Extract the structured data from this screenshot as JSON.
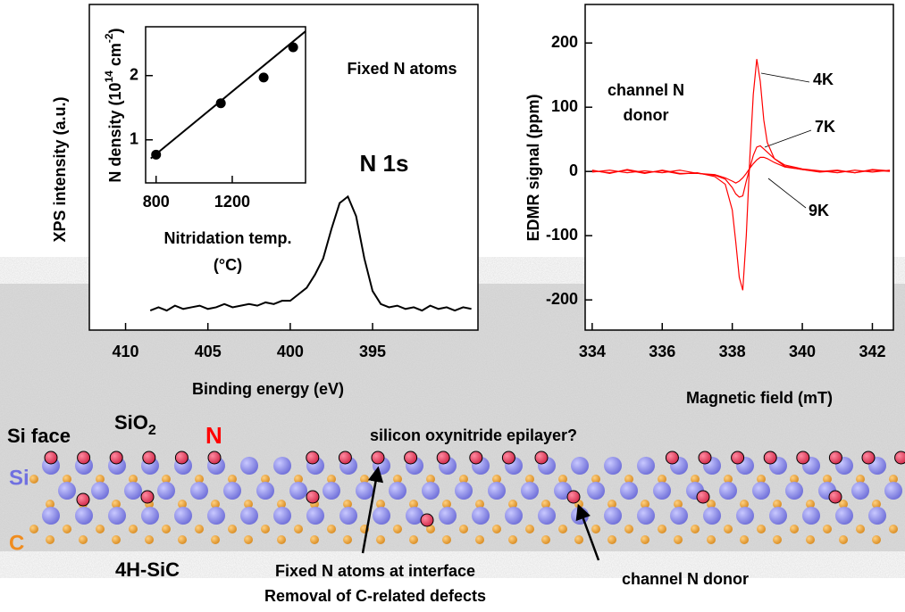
{
  "chart_data": [
    {
      "type": "line",
      "ylabel": "XPS intensity (a.u.)",
      "xlabel": "Binding energy (eV)",
      "annotations": [
        "Fixed N atoms",
        "N 1s"
      ],
      "xlim": [
        412.2,
        388.6
      ],
      "xticks": [
        410,
        405,
        400,
        395
      ],
      "ylim": [
        0,
        1
      ],
      "x": [
        408.5,
        408,
        407.5,
        407,
        406.5,
        406,
        405.5,
        405,
        404.5,
        404,
        403.5,
        403,
        402.5,
        402,
        401.5,
        401,
        400.5,
        400,
        399.5,
        399,
        398.5,
        398,
        397.5,
        397,
        396.5,
        396,
        395.5,
        395,
        394.5,
        394,
        393.5,
        393,
        392.5,
        392,
        391.5,
        391,
        390.5,
        390,
        389.5,
        389
      ],
      "series": [
        {
          "color": "#000000",
          "values": [
            0.06,
            0.07,
            0.06,
            0.075,
            0.065,
            0.07,
            0.075,
            0.065,
            0.07,
            0.08,
            0.07,
            0.075,
            0.08,
            0.075,
            0.085,
            0.08,
            0.09,
            0.09,
            0.11,
            0.13,
            0.17,
            0.22,
            0.31,
            0.39,
            0.41,
            0.35,
            0.22,
            0.12,
            0.08,
            0.07,
            0.075,
            0.065,
            0.07,
            0.06,
            0.075,
            0.065,
            0.07,
            0.06,
            0.07,
            0.065
          ]
        }
      ]
    },
    {
      "type": "scatter",
      "ylabel_parts": [
        "N density (10",
        "14",
        " cm",
        "-2",
        ")"
      ],
      "xlabel": [
        "Nitridation temp.",
        "(°C)"
      ],
      "xlim": [
        745,
        1585
      ],
      "xticks": [
        800,
        1200
      ],
      "ylim": [
        0.33,
        2.76
      ],
      "yticks": [
        1,
        2
      ],
      "x": [
        800,
        1140,
        1365,
        1520
      ],
      "values": [
        0.77,
        1.57,
        1.97,
        2.44
      ],
      "color": "#000000",
      "fit_line": {
        "x": [
          772,
          1585
        ],
        "values": [
          0.71,
          2.69
        ]
      }
    },
    {
      "type": "line",
      "ylabel": "EDMR signal (ppm)",
      "xlabel": "Magnetic field (mT)",
      "annotations": [
        "channel N",
        "donor"
      ],
      "xlim": [
        333.8,
        342.6
      ],
      "xticks": [
        334,
        336,
        338,
        340,
        342
      ],
      "ylim": [
        -247,
        260
      ],
      "yticks": [
        200,
        100,
        0,
        -100,
        -200
      ],
      "x": [
        334,
        334.5,
        335,
        335.5,
        336,
        336.5,
        337,
        337.5,
        337.8,
        338.0,
        338.1,
        338.2,
        338.3,
        338.4,
        338.5,
        338.6,
        338.7,
        338.8,
        338.9,
        339.0,
        339.2,
        339.5,
        340,
        340.5,
        341,
        341.5,
        342,
        342.5
      ],
      "series": [
        {
          "name": "4K",
          "color": "#ff0000",
          "values": [
            2,
            -3,
            3,
            -2,
            1,
            -4,
            -2,
            -8,
            -20,
            -60,
            -110,
            -165,
            -185,
            -100,
            20,
            120,
            175,
            140,
            80,
            45,
            20,
            8,
            3,
            0,
            2,
            -2,
            3,
            1
          ]
        },
        {
          "name": "7K",
          "color": "#ff0000",
          "values": [
            1,
            -2,
            2,
            -3,
            2,
            -3,
            -3,
            -6,
            -12,
            -25,
            -35,
            -40,
            -38,
            -15,
            5,
            25,
            38,
            40,
            35,
            30,
            20,
            10,
            4,
            1,
            -2,
            2,
            -1,
            2
          ]
        },
        {
          "name": "9K",
          "color": "#ff0000",
          "values": [
            -1,
            2,
            -2,
            1,
            -2,
            2,
            -3,
            -5,
            -10,
            -15,
            -18,
            -15,
            -10,
            -3,
            5,
            12,
            18,
            22,
            22,
            20,
            14,
            7,
            3,
            -1,
            1,
            -2,
            2,
            0
          ]
        }
      ]
    }
  ],
  "diagram": {
    "si_face": "Si face",
    "sio2": [
      "SiO",
      "2"
    ],
    "n": "N",
    "epilayer": "silicon oxynitride epilayer?",
    "si": "Si",
    "c": "C",
    "polytype": "4H-SiC",
    "fixed": [
      "Fixed N atoms at interface",
      "Removal of C-related defects"
    ],
    "donor": "channel N donor"
  }
}
